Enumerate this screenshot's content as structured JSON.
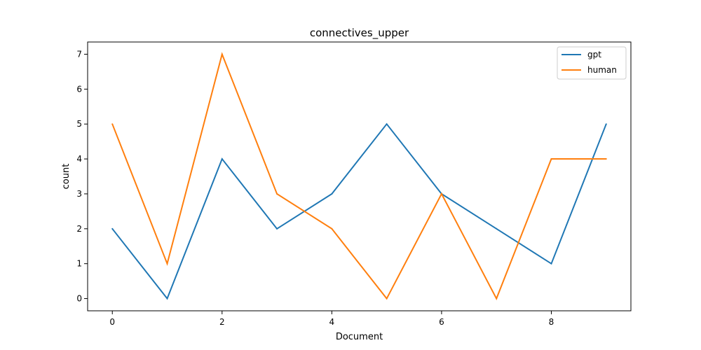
{
  "chart_data": {
    "type": "line",
    "title": "connectives_upper",
    "xlabel": "Document",
    "ylabel": "count",
    "x": [
      0,
      1,
      2,
      3,
      4,
      5,
      6,
      7,
      8,
      9
    ],
    "xlim": [
      -0.45,
      9.45
    ],
    "ylim": [
      -0.35,
      7.35
    ],
    "xticks": [
      0,
      2,
      4,
      6,
      8
    ],
    "xtick_labels": [
      "0",
      "2",
      "4",
      "6",
      "8"
    ],
    "yticks": [
      0,
      1,
      2,
      3,
      4,
      5,
      6,
      7
    ],
    "ytick_labels": [
      "0",
      "1",
      "2",
      "3",
      "4",
      "5",
      "6",
      "7"
    ],
    "grid": false,
    "legend_position": "top-right",
    "series": [
      {
        "name": "gpt",
        "color": "#1f77b4",
        "values": [
          2,
          0,
          4,
          2,
          3,
          5,
          3,
          2,
          1,
          5
        ]
      },
      {
        "name": "human",
        "color": "#ff7f0e",
        "values": [
          5,
          1,
          7,
          3,
          2,
          0,
          3,
          0,
          4,
          4
        ]
      }
    ]
  }
}
